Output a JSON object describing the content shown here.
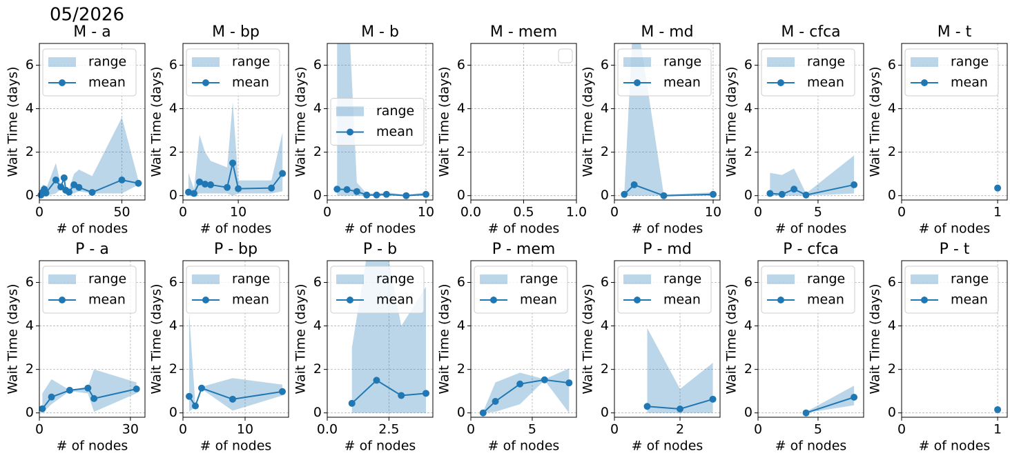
{
  "suptitle": "05/2026",
  "chart_data": [
    {
      "type": "line",
      "title": "M -  a",
      "xlabel": "# of nodes",
      "ylabel": "Wait Time (days)",
      "x": [
        1,
        2,
        3,
        4,
        10,
        13,
        15,
        16,
        18,
        21,
        24,
        32,
        50,
        60
      ],
      "series": [
        {
          "name": "range",
          "kind": "band",
          "color": "#1f77b4",
          "low": [
            0,
            0,
            0.1,
            0,
            0.1,
            0.3,
            0.7,
            0.1,
            0.1,
            0.1,
            0.2,
            0.1,
            0.1,
            0.5
          ],
          "high": [
            0.2,
            0.5,
            0.5,
            0.3,
            1.5,
            0.5,
            0.9,
            0.4,
            0.3,
            1.0,
            1.2,
            0.9,
            3.6,
            0.7
          ]
        },
        {
          "name": "mean",
          "color": "#1f77b4",
          "values": [
            0.03,
            0.16,
            0.3,
            0.12,
            0.72,
            0.4,
            0.82,
            0.25,
            0.16,
            0.5,
            0.38,
            0.15,
            0.72,
            0.57
          ]
        }
      ],
      "xlim": [
        0,
        64
      ],
      "xticks": [
        0,
        50
      ],
      "ylim": [
        -0.2,
        7
      ],
      "yticks": [
        0,
        2,
        4,
        6
      ],
      "grid": true,
      "legend": "upper left"
    },
    {
      "type": "line",
      "title": "M -  bp",
      "xlabel": "# of nodes",
      "ylabel": "Wait Time (days)",
      "x": [
        1,
        2,
        3,
        4,
        5,
        8,
        9,
        10,
        16,
        18
      ],
      "series": [
        {
          "name": "range",
          "kind": "band",
          "color": "#1f77b4",
          "low": [
            0,
            0,
            0.1,
            0.1,
            0.1,
            0.1,
            0,
            0.1,
            0.1,
            0.2
          ],
          "high": [
            1.05,
            0.3,
            2.8,
            2.0,
            1.6,
            1.3,
            4.3,
            0.7,
            0.7,
            2.9
          ]
        },
        {
          "name": "mean",
          "color": "#1f77b4",
          "values": [
            0.16,
            0.1,
            0.63,
            0.53,
            0.5,
            0.38,
            1.5,
            0.32,
            0.35,
            1.02
          ]
        }
      ],
      "xlim": [
        0,
        19.1
      ],
      "xticks": [
        0,
        10
      ],
      "ylim": [
        -0.2,
        7
      ],
      "yticks": [
        0,
        2,
        4,
        6
      ],
      "grid": true,
      "legend": "upper left"
    },
    {
      "type": "line",
      "title": "M -  b",
      "xlabel": "# of nodes",
      "ylabel": "Wait Time (days)",
      "x": [
        1,
        2,
        3,
        4,
        5,
        6,
        8,
        10
      ],
      "series": [
        {
          "name": "range",
          "kind": "band",
          "color": "#1f77b4",
          "low": [
            0,
            0,
            0,
            0,
            0,
            0,
            0,
            0
          ],
          "high": [
            9,
            10,
            0.6,
            0.1,
            0.1,
            0.15,
            0.05,
            0.15
          ]
        },
        {
          "name": "mean",
          "color": "#1f77b4",
          "values": [
            0.3,
            0.28,
            0.19,
            0.03,
            0.03,
            0.06,
            0,
            0.06
          ]
        }
      ],
      "xlim": [
        0,
        10.7
      ],
      "xticks": [
        0,
        10
      ],
      "ylim": [
        -0.2,
        7
      ],
      "yticks": [
        0,
        2,
        4,
        6
      ],
      "grid": true,
      "legend": "center left"
    },
    {
      "type": "line",
      "title": "M -  mem",
      "xlabel": "# of nodes",
      "ylabel": "Wait Time (days)",
      "x": [],
      "series": [],
      "xlim": [
        0,
        1
      ],
      "xticks": [
        {
          "value": 0,
          "label": "0.0"
        },
        {
          "value": 0.5,
          "label": "0.5"
        },
        {
          "value": 1,
          "label": "1.0"
        }
      ],
      "ylim": [
        -0.2,
        7
      ],
      "yticks": [
        0,
        2,
        4,
        6
      ],
      "grid": true,
      "legend": "upper right"
    },
    {
      "type": "line",
      "title": "M -  md",
      "xlabel": "# of nodes",
      "ylabel": "Wait Time (days)",
      "x": [
        1,
        2,
        5,
        10
      ],
      "series": [
        {
          "name": "range",
          "kind": "band",
          "color": "#1f77b4",
          "low": [
            0,
            0,
            0,
            0
          ],
          "high": [
            0.1,
            9,
            0.05,
            0.15
          ]
        },
        {
          "name": "mean",
          "color": "#1f77b4",
          "values": [
            0.06,
            0.5,
            0,
            0.06
          ]
        }
      ],
      "xlim": [
        0,
        10.7
      ],
      "xticks": [
        0,
        10
      ],
      "ylim": [
        -0.2,
        7
      ],
      "yticks": [
        0,
        2,
        4,
        6
      ],
      "grid": true,
      "legend": "upper left"
    },
    {
      "type": "line",
      "title": "M -  cfca",
      "xlabel": "# of nodes",
      "ylabel": "Wait Time (days)",
      "x": [
        1,
        2,
        3,
        4,
        8
      ],
      "series": [
        {
          "name": "range",
          "kind": "band",
          "color": "#1f77b4",
          "low": [
            0,
            0,
            0,
            0,
            0.1
          ],
          "high": [
            1.05,
            0.95,
            1.25,
            0.1,
            1.85
          ]
        },
        {
          "name": "mean",
          "color": "#1f77b4",
          "values": [
            0.1,
            0.06,
            0.3,
            0.03,
            0.5
          ]
        }
      ],
      "xlim": [
        0,
        8.8
      ],
      "xticks": [
        0,
        5
      ],
      "ylim": [
        -0.2,
        7
      ],
      "yticks": [
        0,
        2,
        4,
        6
      ],
      "grid": true,
      "legend": "upper left"
    },
    {
      "type": "line",
      "title": "M -  t",
      "xlabel": "# of nodes",
      "ylabel": "Wait Time (days)",
      "x": [
        1
      ],
      "series": [
        {
          "name": "range",
          "kind": "band",
          "color": "#1f77b4",
          "low": [
            0.35
          ],
          "high": [
            0.35
          ]
        },
        {
          "name": "mean",
          "color": "#1f77b4",
          "values": [
            0.35
          ]
        }
      ],
      "xlim": [
        0,
        1.1
      ],
      "xticks": [
        0,
        1
      ],
      "ylim": [
        -0.2,
        7
      ],
      "yticks": [
        0,
        2,
        4,
        6
      ],
      "grid": true,
      "legend": "upper left"
    },
    {
      "type": "line",
      "title": "P -  a",
      "xlabel": "# of nodes",
      "ylabel": "Wait Time (days)",
      "x": [
        1,
        4,
        10,
        16,
        18,
        32
      ],
      "series": [
        {
          "name": "range",
          "kind": "band",
          "color": "#1f77b4",
          "low": [
            0,
            0.4,
            1.0,
            0.9,
            0.05,
            0.9
          ],
          "high": [
            0.9,
            1.55,
            1.05,
            1.2,
            2.0,
            1.4
          ]
        },
        {
          "name": "mean",
          "color": "#1f77b4",
          "values": [
            0.19,
            0.73,
            1.04,
            1.14,
            0.66,
            1.1
          ]
        }
      ],
      "xlim": [
        0,
        34.8
      ],
      "xticks": [
        0,
        30
      ],
      "ylim": [
        -0.2,
        7
      ],
      "yticks": [
        0,
        2,
        4,
        6
      ],
      "grid": true,
      "legend": "upper left"
    },
    {
      "type": "line",
      "title": "P -  bp",
      "xlabel": "# of nodes",
      "ylabel": "Wait Time (days)",
      "x": [
        1,
        2,
        3,
        8,
        16
      ],
      "series": [
        {
          "name": "range",
          "kind": "band",
          "color": "#1f77b4",
          "low": [
            0.05,
            0.3,
            1.1,
            0.1,
            0.8
          ],
          "high": [
            4.6,
            0.35,
            1.2,
            1.6,
            1.3
          ]
        },
        {
          "name": "mean",
          "color": "#1f77b4",
          "values": [
            0.76,
            0.32,
            1.14,
            0.63,
            0.98
          ]
        }
      ],
      "xlim": [
        0,
        17
      ],
      "xticks": [
        0,
        10
      ],
      "ylim": [
        -0.2,
        7
      ],
      "yticks": [
        0,
        2,
        4,
        6
      ],
      "grid": true,
      "legend": "upper left"
    },
    {
      "type": "line",
      "title": "P -  b",
      "xlabel": "# of nodes",
      "ylabel": "Wait Time (days)",
      "x": [
        1,
        2,
        3,
        4
      ],
      "series": [
        {
          "name": "range",
          "kind": "band",
          "color": "#1f77b4",
          "low": [
            0,
            0,
            0,
            0
          ],
          "high": [
            3.0,
            10,
            4.0,
            5.8
          ]
        },
        {
          "name": "mean",
          "color": "#1f77b4",
          "values": [
            0.44,
            1.5,
            0.8,
            0.9
          ]
        }
      ],
      "xlim": [
        0,
        4.28
      ],
      "xticks": [
        {
          "value": 0,
          "label": "0.0"
        },
        {
          "value": 2.5,
          "label": "2.5"
        }
      ],
      "ylim": [
        -0.2,
        7
      ],
      "yticks": [
        0,
        2,
        4,
        6
      ],
      "grid": true,
      "legend": "upper left"
    },
    {
      "type": "line",
      "title": "P -  mem",
      "xlabel": "# of nodes",
      "ylabel": "Wait Time (days)",
      "x": [
        1,
        2,
        4,
        6,
        8
      ],
      "series": [
        {
          "name": "range",
          "kind": "band",
          "color": "#1f77b4",
          "low": [
            0,
            0.05,
            0.4,
            1.5,
            0
          ],
          "high": [
            0.05,
            1.4,
            1.85,
            1.55,
            2.05
          ]
        },
        {
          "name": "mean",
          "color": "#1f77b4",
          "values": [
            0,
            0.53,
            1.33,
            1.52,
            1.38
          ]
        }
      ],
      "xlim": [
        0,
        8.6
      ],
      "xticks": [
        0,
        5
      ],
      "ylim": [
        -0.2,
        7
      ],
      "yticks": [
        0,
        2,
        4,
        6
      ],
      "grid": true,
      "legend": "upper left"
    },
    {
      "type": "line",
      "title": "P -  md",
      "xlabel": "# of nodes",
      "ylabel": "Wait Time (days)",
      "x": [
        1,
        2,
        3
      ],
      "series": [
        {
          "name": "range",
          "kind": "band",
          "color": "#1f77b4",
          "low": [
            0,
            0,
            0
          ],
          "high": [
            3.9,
            1.1,
            2.3
          ]
        },
        {
          "name": "mean",
          "color": "#1f77b4",
          "values": [
            0.3,
            0.18,
            0.63
          ]
        }
      ],
      "xlim": [
        0,
        3.22
      ],
      "xticks": [
        0,
        2
      ],
      "ylim": [
        -0.2,
        7
      ],
      "yticks": [
        0,
        2,
        4,
        6
      ],
      "grid": true,
      "legend": "upper left"
    },
    {
      "type": "line",
      "title": "P -  cfca",
      "xlabel": "# of nodes",
      "ylabel": "Wait Time (days)",
      "x": [
        4,
        8
      ],
      "series": [
        {
          "name": "range",
          "kind": "band",
          "color": "#1f77b4",
          "low": [
            0,
            0.35
          ],
          "high": [
            0.05,
            1.25
          ]
        },
        {
          "name": "mean",
          "color": "#1f77b4",
          "values": [
            0,
            0.72
          ]
        }
      ],
      "xlim": [
        0,
        8.8
      ],
      "xticks": [
        0,
        5
      ],
      "ylim": [
        -0.2,
        7
      ],
      "yticks": [
        0,
        2,
        4,
        6
      ],
      "grid": true,
      "legend": "upper left"
    },
    {
      "type": "line",
      "title": "P -  t",
      "xlabel": "# of nodes",
      "ylabel": "Wait Time (days)",
      "x": [
        1
      ],
      "series": [
        {
          "name": "range",
          "kind": "band",
          "color": "#1f77b4",
          "low": [
            0.15
          ],
          "high": [
            0.15
          ]
        },
        {
          "name": "mean",
          "color": "#1f77b4",
          "values": [
            0.15
          ]
        }
      ],
      "xlim": [
        0,
        1.1
      ],
      "xticks": [
        0,
        1
      ],
      "ylim": [
        -0.2,
        7
      ],
      "yticks": [
        0,
        2,
        4,
        6
      ],
      "grid": true,
      "legend": "upper left"
    }
  ]
}
